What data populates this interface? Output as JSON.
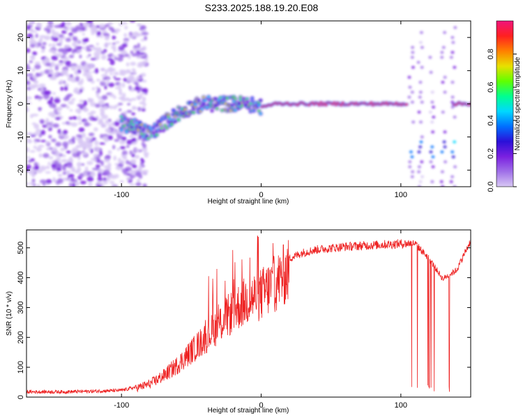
{
  "title": "S233.2025.188.19.20.E08",
  "colors": {
    "snr_line": "#ee2222",
    "frame": "#000000"
  },
  "colormap": [
    "#d8c8f4",
    "#a070e8",
    "#7a20e0",
    "#2b10d8",
    "#0070ff",
    "#00d8ff",
    "#00ff90",
    "#60ff00",
    "#e8e000",
    "#ff8000",
    "#ff2020",
    "#f0147c"
  ],
  "chart_data": [
    {
      "type": "heatmap",
      "xlabel": "Height of straight line (km)",
      "ylabel": "Frequency (Hz)",
      "xlim": [
        -168,
        150
      ],
      "ylim": [
        -25,
        25
      ],
      "xticks": [
        -100,
        0,
        100
      ],
      "yticks": [
        -20,
        -10,
        0,
        10,
        20
      ],
      "colorbar": {
        "label": "Normalized spectral amplitude",
        "range": [
          0,
          1
        ],
        "ticks": [
          0.0,
          0.2,
          0.4,
          0.6,
          0.8
        ]
      },
      "features": [
        {
          "kind": "noise",
          "x_range": [
            -168,
            -90
          ],
          "freq_range": [
            -25,
            25
          ],
          "amplitude": 0.1
        },
        {
          "kind": "tone_track",
          "points": [
            [
              -100,
              -6
            ],
            [
              -90,
              -7
            ],
            [
              -80,
              -9
            ],
            [
              -70,
              -6
            ],
            [
              -60,
              -3
            ],
            [
              -50,
              -1
            ],
            [
              -40,
              0
            ],
            [
              -30,
              0
            ],
            [
              -20,
              0
            ],
            [
              -10,
              0
            ],
            [
              0,
              -1
            ],
            [
              10,
              0
            ],
            [
              20,
              0
            ],
            [
              105,
              0
            ]
          ],
          "amplitude": 0.95
        },
        {
          "kind": "tone_track",
          "points": [
            [
              138,
              0
            ],
            [
              150,
              0
            ]
          ],
          "amplitude": 0.95
        },
        {
          "kind": "spur_band",
          "x_range": [
            105,
            150
          ],
          "freq": -14,
          "amplitude": 0.3
        }
      ]
    },
    {
      "type": "line",
      "xlabel": "Height of straight line (km)",
      "ylabel": "SNR (10 * v/v)",
      "xlim": [
        -168,
        150
      ],
      "ylim": [
        0,
        560
      ],
      "xticks": [
        -100,
        0,
        100
      ],
      "yticks": [
        0,
        100,
        200,
        300,
        400,
        500
      ],
      "series": [
        {
          "x": [
            -168,
            -140,
            -120,
            -100,
            -90,
            -80,
            -70,
            -60,
            -50,
            -40,
            -30,
            -20,
            -10,
            0,
            10,
            20,
            30,
            40,
            60,
            80,
            100,
            106,
            110,
            120,
            130,
            140,
            150
          ],
          "y": [
            20,
            20,
            22,
            25,
            35,
            50,
            80,
            120,
            170,
            220,
            270,
            320,
            360,
            380,
            420,
            470,
            490,
            500,
            510,
            515,
            520,
            520,
            520,
            470,
            400,
            430,
            530
          ]
        }
      ]
    }
  ]
}
